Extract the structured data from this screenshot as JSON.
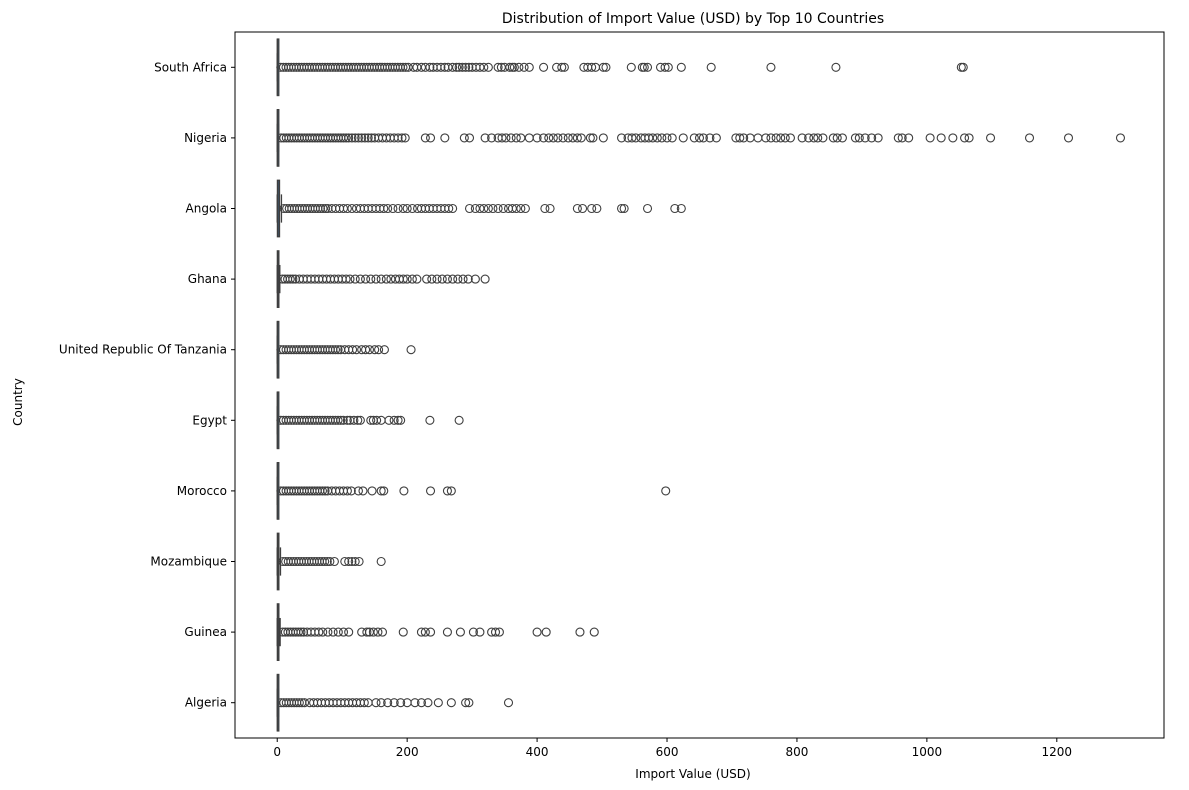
{
  "chart_data": {
    "type": "box",
    "orientation": "horizontal",
    "title": "Distribution of Import Value (USD) by Top 10 Countries",
    "xlabel": "Import Value (USD)",
    "ylabel": "Country",
    "xlim": [
      -65,
      1365
    ],
    "xticks": [
      0,
      200,
      400,
      600,
      800,
      1000,
      1200
    ],
    "grid": false,
    "legend": "none",
    "colors": {
      "box_fill": "#3b75af",
      "line": "#3f3f3f"
    },
    "categories": [
      "South Africa",
      "Nigeria",
      "Angola",
      "Ghana",
      "United Republic Of Tanzania",
      "Egypt",
      "Morocco",
      "Mozambique",
      "Guinea",
      "Algeria"
    ],
    "boxes": [
      {
        "q1": 0.1,
        "median": 0.3,
        "q3": 0.6,
        "whisker_low": 0,
        "whisker_high": 1.5,
        "dense_to": 205,
        "outliers": [
          210,
          215,
          222,
          228,
          235,
          240,
          246,
          252,
          258,
          263,
          270,
          276,
          280,
          285,
          290,
          295,
          300,
          306,
          312,
          318,
          325,
          340,
          345,
          350,
          358,
          362,
          365,
          372,
          380,
          388,
          410,
          430,
          438,
          442,
          472,
          478,
          484,
          490,
          502,
          506,
          545,
          562,
          565,
          570,
          590,
          597,
          602,
          622,
          668,
          760,
          860,
          1053,
          1056
        ]
      },
      {
        "q1": 0.1,
        "median": 0.4,
        "q3": 0.8,
        "whisker_low": 0,
        "whisker_high": 2,
        "dense_to": 100,
        "outliers": [
          102,
          106,
          110,
          115,
          120,
          125,
          130,
          135,
          140,
          145,
          150,
          156,
          162,
          168,
          174,
          180,
          186,
          192,
          197,
          228,
          236,
          258,
          288,
          296,
          320,
          330,
          340,
          346,
          352,
          360,
          368,
          375,
          388,
          400,
          410,
          418,
          425,
          432,
          440,
          448,
          455,
          462,
          468,
          482,
          486,
          502,
          530,
          540,
          546,
          552,
          560,
          566,
          572,
          578,
          585,
          592,
          600,
          608,
          625,
          642,
          650,
          656,
          666,
          676,
          706,
          712,
          718,
          728,
          740,
          752,
          760,
          768,
          775,
          782,
          790,
          808,
          818,
          826,
          832,
          840,
          856,
          862,
          870,
          890,
          896,
          905,
          915,
          925,
          956,
          962,
          972,
          1005,
          1022,
          1040,
          1058,
          1065,
          1098,
          1158,
          1218,
          1298
        ]
      },
      {
        "q1": 0.3,
        "median": 1.2,
        "q3": 3.5,
        "whisker_low": 0,
        "whisker_high": 6.5,
        "dense_to": 75,
        "outliers": [
          78,
          84,
          90,
          96,
          102,
          108,
          115,
          122,
          128,
          134,
          140,
          146,
          152,
          158,
          164,
          170,
          178,
          186,
          194,
          200,
          208,
          216,
          222,
          228,
          234,
          240,
          246,
          252,
          258,
          264,
          270,
          296,
          305,
          312,
          318,
          325,
          332,
          340,
          348,
          356,
          362,
          368,
          375,
          382,
          412,
          420,
          462,
          470,
          484,
          492,
          530,
          534,
          570,
          612,
          622
        ]
      },
      {
        "q1": 0.2,
        "median": 0.8,
        "q3": 1.8,
        "whisker_low": 0,
        "whisker_high": 4,
        "dense_to": 30,
        "outliers": [
          34,
          40,
          46,
          52,
          58,
          64,
          70,
          76,
          82,
          88,
          94,
          100,
          106,
          112,
          120,
          128,
          136,
          144,
          152,
          160,
          168,
          175,
          182,
          188,
          194,
          200,
          208,
          215,
          230,
          238,
          246,
          254,
          262,
          270,
          278,
          286,
          294,
          305,
          320
        ]
      },
      {
        "q1": 0.1,
        "median": 0.3,
        "q3": 0.7,
        "whisker_low": 0,
        "whisker_high": 1.6,
        "dense_to": 100,
        "outliers": [
          104,
          110,
          116,
          122,
          130,
          136,
          142,
          150,
          156,
          165,
          206
        ]
      },
      {
        "q1": 0.1,
        "median": 0.3,
        "q3": 0.7,
        "whisker_low": 0,
        "whisker_high": 1.6,
        "dense_to": 105,
        "outliers": [
          108,
          112,
          118,
          124,
          128,
          144,
          148,
          153,
          160,
          172,
          180,
          186,
          190,
          235,
          280
        ]
      },
      {
        "q1": 0.1,
        "median": 0.3,
        "q3": 0.7,
        "whisker_low": 0,
        "whisker_high": 1.6,
        "dense_to": 78,
        "outliers": [
          84,
          90,
          96,
          102,
          108,
          114,
          125,
          132,
          146,
          160,
          164,
          195,
          236,
          262,
          268,
          598
        ]
      },
      {
        "q1": 0.2,
        "median": 0.9,
        "q3": 2.5,
        "whisker_low": 0,
        "whisker_high": 5,
        "dense_to": 82,
        "outliers": [
          88,
          104,
          110,
          115,
          120,
          126,
          160
        ]
      },
      {
        "q1": 0.2,
        "median": 0.8,
        "q3": 2,
        "whisker_low": 0,
        "whisker_high": 4.5,
        "dense_to": 42,
        "outliers": [
          46,
          52,
          58,
          64,
          70,
          78,
          86,
          94,
          102,
          110,
          130,
          138,
          142,
          148,
          155,
          162,
          194,
          222,
          228,
          236,
          262,
          282,
          302,
          312,
          330,
          336,
          342,
          400,
          414,
          466,
          488
        ]
      },
      {
        "q1": 0.1,
        "median": 0.4,
        "q3": 0.9,
        "whisker_low": 0,
        "whisker_high": 2,
        "dense_to": 45,
        "outliers": [
          50,
          56,
          62,
          68,
          74,
          80,
          86,
          92,
          98,
          104,
          110,
          116,
          122,
          128,
          134,
          140,
          152,
          160,
          170,
          180,
          190,
          200,
          212,
          222,
          232,
          248,
          268,
          290,
          295,
          356
        ]
      }
    ]
  }
}
